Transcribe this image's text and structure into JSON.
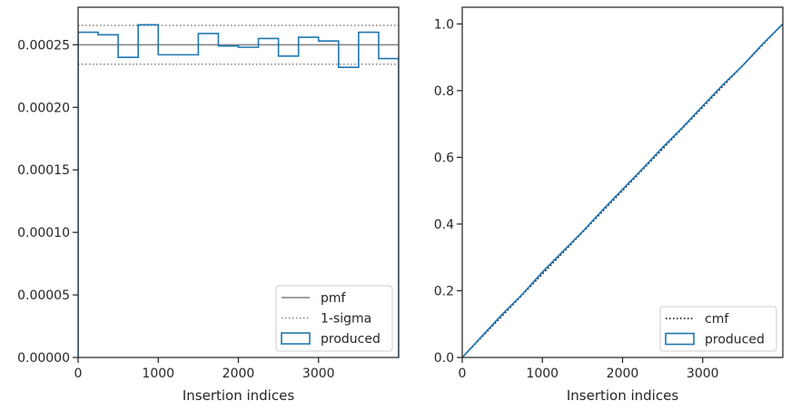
{
  "chart_data": [
    {
      "type": "step",
      "xlabel": "Insertion indices",
      "ylabel": "",
      "xlim": [
        0,
        4000
      ],
      "ylim": [
        0,
        0.00028
      ],
      "xticks": [
        0,
        1000,
        2000,
        3000
      ],
      "xtick_labels": [
        "0",
        "1000",
        "2000",
        "3000"
      ],
      "yticks": [
        0,
        5e-05,
        0.0001,
        0.00015,
        0.0002,
        0.00025
      ],
      "ytick_labels": [
        "0.00000",
        "0.00005",
        "0.00010",
        "0.00015",
        "0.00020",
        "0.00025"
      ],
      "grid": false,
      "legend_position": "lower-right",
      "series": [
        {
          "name": "pmf",
          "kind": "hline",
          "value": 0.00025,
          "color": "#808080",
          "style": "solid"
        },
        {
          "name": "1-sigma",
          "kind": "hlines",
          "values": [
            0.0002655,
            0.0002345
          ],
          "color": "#808080",
          "style": "dotted"
        },
        {
          "name": "produced",
          "kind": "histogram",
          "color": "#1f77b4",
          "bin_edges": [
            0,
            250,
            500,
            750,
            1000,
            1250,
            1500,
            1750,
            2000,
            2250,
            2500,
            2750,
            3000,
            3250,
            3500,
            3750,
            4000
          ],
          "values": [
            0.00026,
            0.000258,
            0.00024,
            0.000266,
            0.000242,
            0.000242,
            0.000259,
            0.000249,
            0.000248,
            0.000255,
            0.000241,
            0.000256,
            0.000253,
            0.000232,
            0.00026,
            0.000239
          ]
        }
      ]
    },
    {
      "type": "line",
      "xlabel": "Insertion indices",
      "ylabel": "",
      "xlim": [
        0,
        4000
      ],
      "ylim": [
        0,
        1.05
      ],
      "xticks": [
        0,
        1000,
        2000,
        3000
      ],
      "xtick_labels": [
        "0",
        "1000",
        "2000",
        "3000"
      ],
      "yticks": [
        0,
        0.2,
        0.4,
        0.6,
        0.8,
        1.0
      ],
      "ytick_labels": [
        "0.0",
        "0.2",
        "0.4",
        "0.6",
        "0.8",
        "1.0"
      ],
      "grid": false,
      "legend_position": "lower-right",
      "series": [
        {
          "name": "cmf",
          "kind": "line",
          "color": "#000000",
          "style": "dotted",
          "x": [
            0,
            4000
          ],
          "y": [
            0,
            1
          ]
        },
        {
          "name": "produced",
          "kind": "line",
          "color": "#1f77b4",
          "style": "solid",
          "x": [
            0,
            250,
            500,
            750,
            1000,
            1250,
            1500,
            1750,
            2000,
            2250,
            2500,
            2750,
            3000,
            3250,
            3500,
            3750,
            4000
          ],
          "y": [
            0,
            0.065,
            0.1295,
            0.1895,
            0.256,
            0.3165,
            0.377,
            0.4418,
            0.504,
            0.566,
            0.6298,
            0.6901,
            0.754,
            0.8173,
            0.8753,
            0.9403,
            1.0
          ]
        }
      ]
    }
  ]
}
